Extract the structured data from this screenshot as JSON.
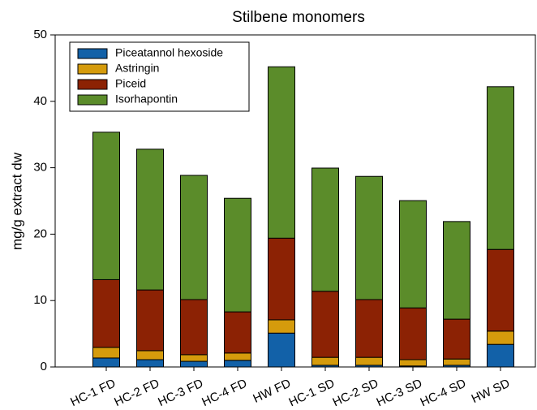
{
  "chart_data": {
    "type": "stacked_bar",
    "title": "Stilbene monomers",
    "y_label": "mg/g extract dw",
    "categories": [
      "HC-1 FD",
      "HC-2 FD",
      "HC-3 FD",
      "HC-4 FD",
      "HW FD",
      "HC-1 SD",
      "HC-2 SD",
      "HC-3 SD",
      "HC-4 SD",
      "HW SD"
    ],
    "series": [
      {
        "name": "Piceatannol hexoside",
        "color": "#1261a8",
        "values": [
          1.35,
          1.1,
          0.85,
          1.0,
          5.1,
          0.25,
          0.25,
          0.15,
          0.25,
          3.4
        ]
      },
      {
        "name": "Astringin",
        "color": "#d59b0c",
        "values": [
          1.6,
          1.35,
          1.0,
          1.1,
          2.0,
          1.2,
          1.2,
          0.95,
          0.95,
          2.0
        ]
      },
      {
        "name": "Piceid",
        "color": "#8c2204",
        "values": [
          10.2,
          9.15,
          8.3,
          6.2,
          12.3,
          9.95,
          8.7,
          7.8,
          6.0,
          12.3
        ]
      },
      {
        "name": "Isorhapontin",
        "color": "#5b8c2a",
        "values": [
          22.2,
          21.2,
          18.7,
          17.1,
          25.8,
          18.55,
          18.55,
          16.15,
          14.7,
          24.5
        ]
      }
    ],
    "ylim": [
      0,
      50
    ],
    "yticks": [
      0,
      10,
      20,
      30,
      40,
      50
    ],
    "legend": "upper left"
  }
}
